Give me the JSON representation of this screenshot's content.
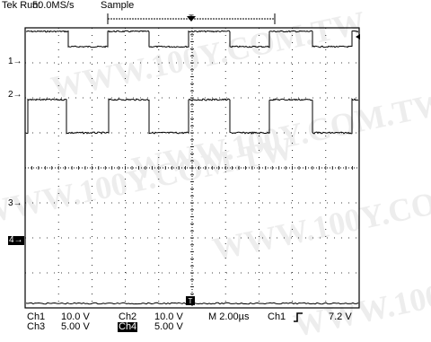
{
  "header": {
    "brand": "Tek",
    "run_state": "Run:",
    "sample_rate": "50.0MS/s",
    "acq_mode": "Sample"
  },
  "markers": {
    "ch1": "1→",
    "ch2": "2→",
    "ch3": "3→",
    "ch4": "4→"
  },
  "trigger_marker": "T",
  "readout": {
    "ch1": {
      "label": "Ch1",
      "scale": "10.0 V"
    },
    "ch2": {
      "label": "Ch2",
      "scale": "10.0 V"
    },
    "ch3": {
      "label": "Ch3",
      "scale": "5.00 V"
    },
    "ch4": {
      "label": "Ch4",
      "scale": "5.00 V"
    },
    "timebase": "M 2.00µs",
    "trigger": {
      "source": "Ch1",
      "slope_icon": "rising-edge-icon",
      "level": "7.2 V"
    }
  },
  "watermark": "WWW.100Y.COM.TW",
  "colors": {
    "trace": "#000000",
    "graticule": "#000000",
    "background": "#ffffff"
  }
}
